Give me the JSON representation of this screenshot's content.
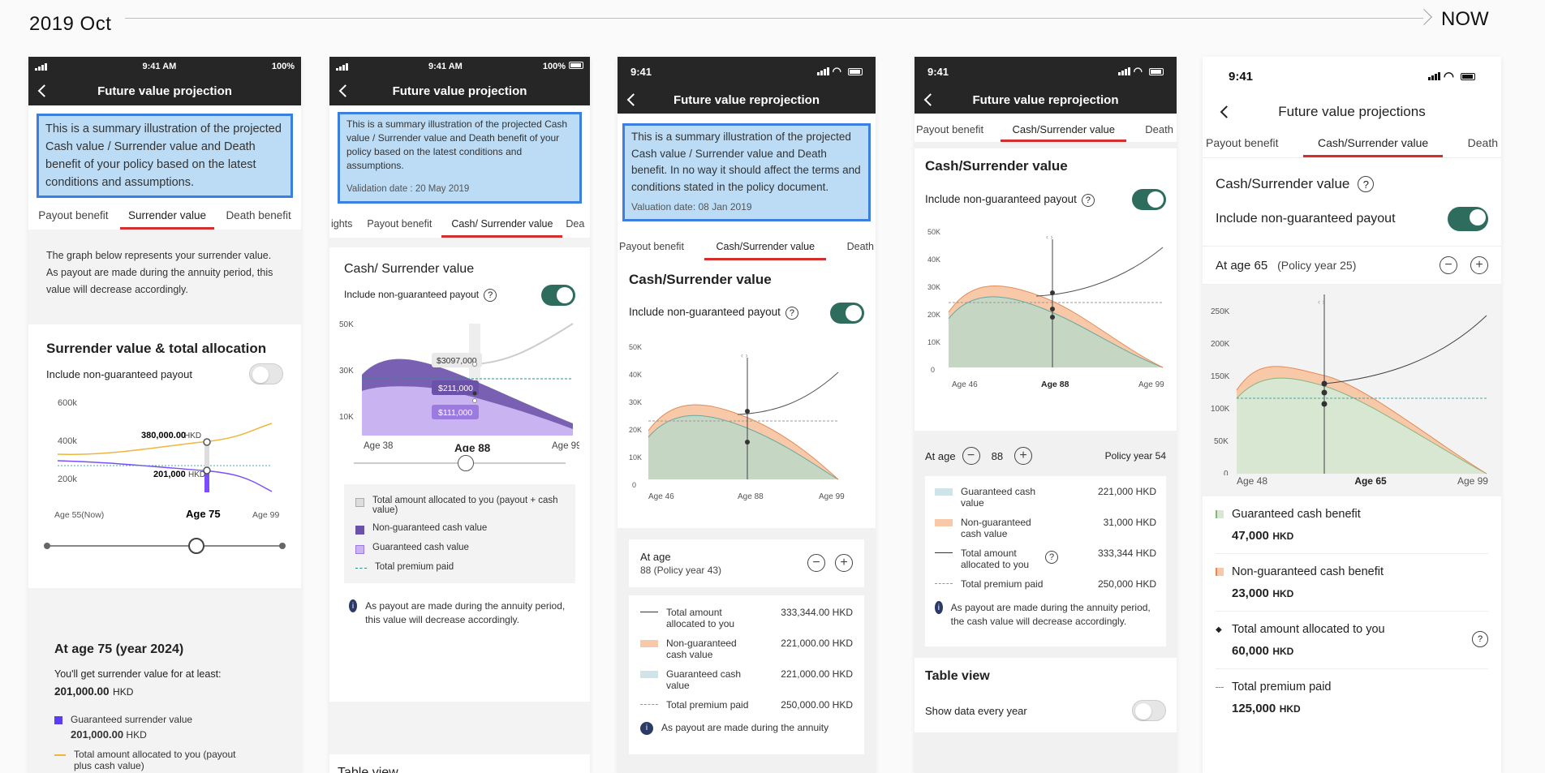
{
  "timeline": {
    "start": "2019 Oct",
    "end": "NOW"
  },
  "s1": {
    "status": {
      "time": "9:41 AM",
      "battery": "100%"
    },
    "title": "Future value projection",
    "info": "This is a summary illustration of the projected Cash value / Surrender value and Death benefit of your policy based on the latest conditions and assumptions.",
    "tabs": [
      "Payout benefit",
      "Surrender value",
      "Death benefit"
    ],
    "desc": "The graph below represents your surrender value. As payout are made during the annuity period, this value will decrease accordingly.",
    "chart_title": "Surrender value & total allocation",
    "toggle_label": "Include non-guaranteed payout",
    "yticks": [
      "600k",
      "400k",
      "200k"
    ],
    "label_top": "380,000.00",
    "label_bottom": "201,000",
    "currency": "HKD",
    "xlabels": [
      "Age 55(Now)",
      "Age 75",
      "Age 99"
    ],
    "at_age": "At age 75 (year 2024)",
    "at_age_desc": "You'll get surrender value for at least:",
    "at_age_value": "201,000.00",
    "legend": [
      {
        "label": "Guaranteed surrender value",
        "value": "201,000.00"
      },
      {
        "label": "Total amount allocated to you (payout plus cash value)"
      }
    ]
  },
  "s2": {
    "status": {
      "time": "9:41 AM",
      "battery": "100%"
    },
    "title": "Future value projection",
    "info": "This is a summary illustration of the projected Cash value / Surrender value and Death benefit of your policy based on the latest conditions and assumptions.",
    "validation": "Validation date : 20 May 2019",
    "tabs": [
      "ights",
      "Payout benefit",
      "Cash/ Surrender value",
      "Dea"
    ],
    "section_title": "Cash/ Surrender value",
    "toggle_label": "Include non-guaranteed payout",
    "yticks": [
      "50K",
      "30K",
      "10K"
    ],
    "tooltips": [
      "$3097,000",
      "$211,000",
      "$111,000"
    ],
    "xlabels": [
      "Age 38",
      "Age 88",
      "Age 99"
    ],
    "legend": [
      "Total amount allocated to you (payout + cash value)",
      "Non-guaranteed cash value",
      "Guaranteed cash value",
      "Total premium paid"
    ],
    "note": "As payout are made during the annuity period, this value will decrease accordingly.",
    "table_view": "Table view"
  },
  "s3": {
    "status": {
      "time": "9:41"
    },
    "title": "Future value reprojection",
    "info": "This is a summary illustration of the projected Cash value / Surrender value and Death benefit. In no way it should affect the terms and conditions stated in the policy document.",
    "validation": "Valuation date: 08 Jan 2019",
    "tabs": [
      "Payout benefit",
      "Cash/Surrender value",
      "Death"
    ],
    "section_title": "Cash/Surrender value",
    "toggle_label": "Include non-guaranteed payout",
    "yticks": [
      "50K",
      "40K",
      "30K",
      "20K",
      "10K",
      "0"
    ],
    "xlabels": [
      "Age 46",
      "Age 88",
      "Age 99"
    ],
    "at_age_label": "At age",
    "at_age_sub": "88 (Policy year 43)",
    "legend": [
      {
        "label": "Total amount allocated to you",
        "value": "333,344.00 HKD"
      },
      {
        "label": "Non-guaranteed cash value",
        "value": "221,000.00 HKD"
      },
      {
        "label": "Guaranteed cash value",
        "value": "221,000.00 HKD"
      },
      {
        "label": "Total premium paid",
        "value": "250,000.00 HKD"
      }
    ],
    "note": "As payout are made during the annuity"
  },
  "s4": {
    "status": {
      "time": "9:41"
    },
    "title": "Future value reprojection",
    "tabs": [
      "Payout benefit",
      "Cash/Surrender value",
      "Death"
    ],
    "section_title": "Cash/Surrender value",
    "toggle_label": "Include non-guaranteed payout",
    "yticks": [
      "50K",
      "40K",
      "30K",
      "20K",
      "10K",
      "0"
    ],
    "xlabels": [
      "Age 46",
      "Age 88",
      "Age 99"
    ],
    "at_age_label": "At age",
    "age": "88",
    "policy_year": "Policy year 54",
    "legend": [
      {
        "label": "Guaranteed cash value",
        "value": "221,000 HKD"
      },
      {
        "label": "Non-guaranteed cash value",
        "value": "31,000 HKD"
      },
      {
        "label": "Total amount allocated to you",
        "value": "333,344 HKD"
      },
      {
        "label": "Total premium paid",
        "value": "250,000 HKD"
      }
    ],
    "note": "As payout are made during the annuity period, the cash value will decrease accordingly.",
    "table_view": "Table view",
    "show_data": "Show data every year"
  },
  "s5": {
    "status": {
      "time": "9:41"
    },
    "title": "Future value projections",
    "tabs": [
      "Payout benefit",
      "Cash/Surrender value",
      "Death"
    ],
    "section_title": "Cash/Surrender value",
    "toggle_label": "Include non-guaranteed payout",
    "at_age": "At age 65",
    "policy_year": "(Policy year 25)",
    "yticks": [
      "250K",
      "200K",
      "150K",
      "100K",
      "50K",
      "0"
    ],
    "xlabels": [
      "Age 48",
      "Age 65",
      "Age 99"
    ],
    "legend": [
      {
        "label": "Guaranteed cash benefit",
        "value": "47,000",
        "unit": "HKD"
      },
      {
        "label": "Non-guaranteed cash benefit",
        "value": "23,000",
        "unit": "HKD"
      },
      {
        "label": "Total amount allocated to you",
        "value": "60,000",
        "unit": "HKD"
      },
      {
        "label": "Total premium paid",
        "value": "125,000",
        "unit": "HKD"
      }
    ]
  },
  "colors": {
    "accent_red": "#d32f2f",
    "toggle_green": "#2e6d5d",
    "info_blue": "#bcdcf5",
    "orange_area": "#f7c9a8",
    "green_area": "#c5dcc3",
    "purple": "#7c4dff"
  }
}
